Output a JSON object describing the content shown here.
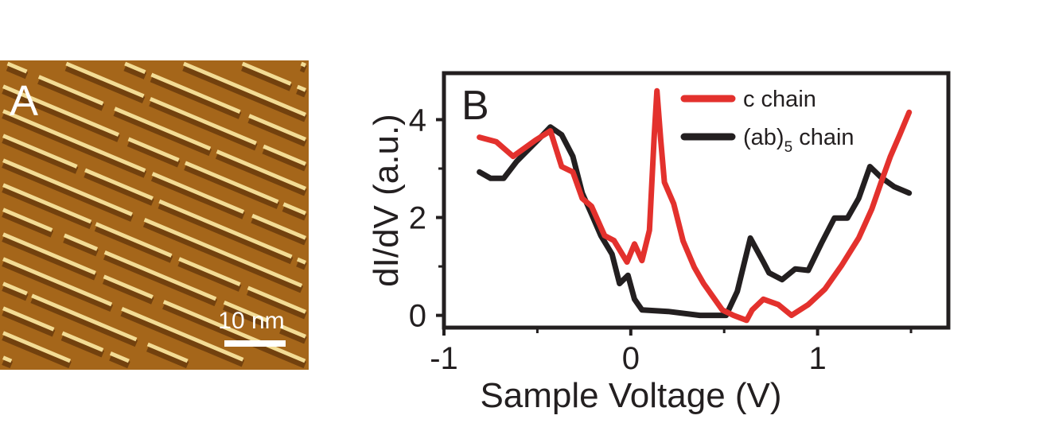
{
  "panel_a": {
    "label": "A",
    "scale_bar_label": "10 nm",
    "colors": {
      "dark": "#5a2e08",
      "mid": "#a5661a",
      "bright": "#f5e6a8"
    }
  },
  "chart_data": {
    "type": "line",
    "panel_label": "B",
    "xlabel": "Sample Voltage (V)",
    "ylabel": "dI/dV (a.u.)",
    "xlim": [
      -1,
      1.7
    ],
    "ylim": [
      -0.25,
      4.95
    ],
    "xticks": [
      -1,
      0,
      1
    ],
    "xtick_labels": [
      "-1",
      "0",
      "1"
    ],
    "yticks": [
      0,
      2,
      4
    ],
    "ytick_labels": [
      "0",
      "2",
      "4"
    ],
    "grid": false,
    "legend_position": "top-center",
    "series": [
      {
        "name": "c chain",
        "color": "#e3312d",
        "x": [
          -0.81,
          -0.72,
          -0.63,
          -0.51,
          -0.43,
          -0.37,
          -0.31,
          -0.26,
          -0.21,
          -0.14,
          -0.09,
          -0.02,
          0.02,
          0.06,
          0.1,
          0.125,
          0.14,
          0.16,
          0.18,
          0.23,
          0.28,
          0.34,
          0.39,
          0.44,
          0.49,
          0.55,
          0.62,
          0.65,
          0.71,
          0.79,
          0.86,
          0.95,
          1.04,
          1.13,
          1.22,
          1.29,
          1.34,
          1.39,
          1.44,
          1.49
        ],
        "y": [
          3.64,
          3.55,
          3.25,
          3.58,
          3.77,
          3.04,
          2.93,
          2.39,
          2.23,
          1.63,
          1.53,
          1.09,
          1.46,
          1.12,
          1.74,
          3.64,
          4.59,
          3.6,
          2.72,
          2.28,
          1.52,
          0.98,
          0.65,
          0.38,
          0.11,
          0.0,
          -0.1,
          0.11,
          0.33,
          0.22,
          0.0,
          0.22,
          0.54,
          1.03,
          1.58,
          2.17,
          2.72,
          3.25,
          3.69,
          4.15
        ]
      },
      {
        "name": "(ab)5 chain",
        "name_main": "(ab)",
        "name_sub": "5",
        "name_rest": " chain",
        "color": "#231f20",
        "x": [
          -0.81,
          -0.75,
          -0.68,
          -0.61,
          -0.54,
          -0.47,
          -0.43,
          -0.37,
          -0.31,
          -0.26,
          -0.21,
          -0.16,
          -0.1,
          -0.06,
          -0.015,
          0.02,
          0.06,
          0.2,
          0.37,
          0.51,
          0.57,
          0.64,
          0.71,
          0.74,
          0.81,
          0.88,
          0.95,
          1.02,
          1.09,
          1.16,
          1.22,
          1.28,
          1.34,
          1.41,
          1.49
        ],
        "y": [
          2.93,
          2.8,
          2.8,
          3.15,
          3.42,
          3.69,
          3.85,
          3.69,
          3.25,
          2.5,
          2.07,
          1.63,
          1.25,
          0.65,
          0.82,
          0.33,
          0.11,
          0.08,
          0.0,
          0.0,
          0.49,
          1.58,
          1.09,
          0.87,
          0.73,
          0.95,
          0.92,
          1.47,
          1.99,
          1.99,
          2.39,
          3.04,
          2.82,
          2.63,
          2.5
        ]
      }
    ]
  }
}
